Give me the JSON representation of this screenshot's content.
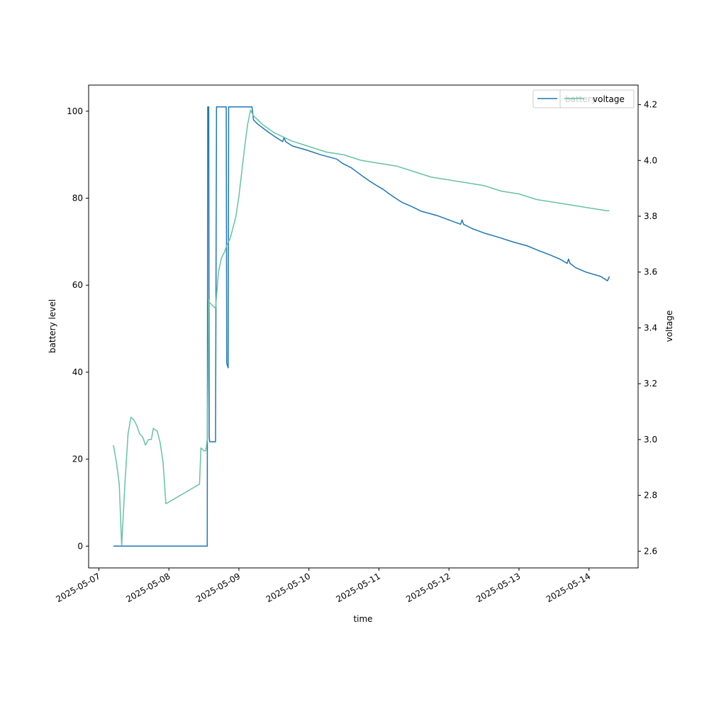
{
  "chart_data": {
    "type": "line",
    "xlabel": "time",
    "ylabel_left": "battery level",
    "ylabel_right": "voltage",
    "x_ticks": [
      "2025-05-07",
      "2025-05-08",
      "2025-05-09",
      "2025-05-10",
      "2025-05-11",
      "2025-05-12",
      "2025-05-13",
      "2025-05-14"
    ],
    "xlim": [
      "2025-05-06 20:30",
      "2025-05-14 16:50"
    ],
    "ylim_left": [
      -5,
      106
    ],
    "y_ticks_left": [
      0,
      20,
      40,
      60,
      80,
      100
    ],
    "ylim_right": [
      2.54,
      4.27
    ],
    "y_ticks_right": [
      2.6,
      2.8,
      3.0,
      3.2,
      3.4,
      3.6,
      3.8,
      4.0,
      4.2
    ],
    "legend_placement": "upper-right",
    "series": [
      {
        "name": "battery",
        "axis": "left",
        "color": "#1f77b4",
        "points": [
          [
            "2025-05-07 05:00",
            0
          ],
          [
            "2025-05-08 13:10",
            0
          ],
          [
            "2025-05-08 13:20",
            101
          ],
          [
            "2025-05-08 13:40",
            101
          ],
          [
            "2025-05-08 13:50",
            25
          ],
          [
            "2025-05-08 14:00",
            24
          ],
          [
            "2025-05-08 16:00",
            24
          ],
          [
            "2025-05-08 16:20",
            101
          ],
          [
            "2025-05-08 19:40",
            101
          ],
          [
            "2025-05-08 19:50",
            42
          ],
          [
            "2025-05-08 20:20",
            41
          ],
          [
            "2025-05-08 20:30",
            101
          ],
          [
            "2025-05-09 04:30",
            101
          ],
          [
            "2025-05-09 05:00",
            98
          ],
          [
            "2025-05-09 06:30",
            97
          ],
          [
            "2025-05-09 08:30",
            96
          ],
          [
            "2025-05-09 10:30",
            95
          ],
          [
            "2025-05-09 12:40",
            94
          ],
          [
            "2025-05-09 15:00",
            93
          ],
          [
            "2025-05-09 15:30",
            94
          ],
          [
            "2025-05-09 16:00",
            93
          ],
          [
            "2025-05-09 18:20",
            92
          ],
          [
            "2025-05-09 23:30",
            91
          ],
          [
            "2025-05-10 04:00",
            90
          ],
          [
            "2025-05-10 09:30",
            89
          ],
          [
            "2025-05-10 11:30",
            88
          ],
          [
            "2025-05-10 14:30",
            87
          ],
          [
            "2025-05-10 16:30",
            86
          ],
          [
            "2025-05-10 18:30",
            85
          ],
          [
            "2025-05-10 20:40",
            84
          ],
          [
            "2025-05-10 23:00",
            83
          ],
          [
            "2025-05-11 01:30",
            82
          ],
          [
            "2025-05-11 03:30",
            81
          ],
          [
            "2025-05-11 05:40",
            80
          ],
          [
            "2025-05-11 08:00",
            79
          ],
          [
            "2025-05-11 11:30",
            78
          ],
          [
            "2025-05-11 14:30",
            77
          ],
          [
            "2025-05-11 20:00",
            76
          ],
          [
            "2025-05-12 00:00",
            75
          ],
          [
            "2025-05-12 04:00",
            74
          ],
          [
            "2025-05-12 04:30",
            75
          ],
          [
            "2025-05-12 05:00",
            74
          ],
          [
            "2025-05-12 08:00",
            73
          ],
          [
            "2025-05-12 12:00",
            72
          ],
          [
            "2025-05-12 17:00",
            71
          ],
          [
            "2025-05-12 21:40",
            70
          ],
          [
            "2025-05-13 03:00",
            69
          ],
          [
            "2025-05-13 06:30",
            68
          ],
          [
            "2025-05-13 10:30",
            67
          ],
          [
            "2025-05-13 14:00",
            66
          ],
          [
            "2025-05-13 16:30",
            65
          ],
          [
            "2025-05-13 17:00",
            66
          ],
          [
            "2025-05-13 17:30",
            65
          ],
          [
            "2025-05-13 19:30",
            64
          ],
          [
            "2025-05-13 23:00",
            63
          ],
          [
            "2025-05-14 04:00",
            62
          ],
          [
            "2025-05-14 06:20",
            61
          ],
          [
            "2025-05-14 07:00",
            62
          ]
        ]
      },
      {
        "name": "voltage",
        "axis": "right",
        "color": "#66c2a5",
        "points": [
          [
            "2025-05-07 05:00",
            2.98
          ],
          [
            "2025-05-07 06:00",
            2.92
          ],
          [
            "2025-05-07 07:00",
            2.84
          ],
          [
            "2025-05-07 07:50",
            2.62
          ],
          [
            "2025-05-07 09:00",
            2.85
          ],
          [
            "2025-05-07 10:00",
            3.02
          ],
          [
            "2025-05-07 11:00",
            3.08
          ],
          [
            "2025-05-07 12:00",
            3.07
          ],
          [
            "2025-05-07 13:00",
            3.05
          ],
          [
            "2025-05-07 14:00",
            3.02
          ],
          [
            "2025-05-07 15:00",
            3.01
          ],
          [
            "2025-05-07 16:00",
            2.98
          ],
          [
            "2025-05-07 17:00",
            3.0
          ],
          [
            "2025-05-07 18:00",
            3.0
          ],
          [
            "2025-05-07 18:40",
            3.04
          ],
          [
            "2025-05-07 20:00",
            3.03
          ],
          [
            "2025-05-07 21:00",
            2.99
          ],
          [
            "2025-05-07 22:00",
            2.92
          ],
          [
            "2025-05-07 23:00",
            2.77
          ],
          [
            "2025-05-08 10:30",
            2.84
          ],
          [
            "2025-05-08 11:00",
            2.97
          ],
          [
            "2025-05-08 12:00",
            2.96
          ],
          [
            "2025-05-08 12:40",
            2.96
          ],
          [
            "2025-05-08 13:10",
            3.0
          ],
          [
            "2025-05-08 13:40",
            3.5
          ],
          [
            "2025-05-08 14:00",
            3.49
          ],
          [
            "2025-05-08 15:00",
            3.48
          ],
          [
            "2025-05-08 16:00",
            3.47
          ],
          [
            "2025-05-08 17:00",
            3.6
          ],
          [
            "2025-05-08 18:00",
            3.65
          ],
          [
            "2025-05-08 19:00",
            3.67
          ],
          [
            "2025-05-08 20:00",
            3.7
          ],
          [
            "2025-05-08 21:00",
            3.72
          ],
          [
            "2025-05-08 22:00",
            3.76
          ],
          [
            "2025-05-08 23:00",
            3.8
          ],
          [
            "2025-05-09 00:00",
            3.87
          ],
          [
            "2025-05-09 01:00",
            3.96
          ],
          [
            "2025-05-09 02:00",
            4.05
          ],
          [
            "2025-05-09 03:00",
            4.13
          ],
          [
            "2025-05-09 04:00",
            4.18
          ],
          [
            "2025-05-09 05:00",
            4.16
          ],
          [
            "2025-05-09 08:00",
            4.13
          ],
          [
            "2025-05-09 12:00",
            4.1
          ],
          [
            "2025-05-09 18:00",
            4.07
          ],
          [
            "2025-05-10 00:00",
            4.05
          ],
          [
            "2025-05-10 06:00",
            4.03
          ],
          [
            "2025-05-10 12:00",
            4.02
          ],
          [
            "2025-05-10 18:00",
            4.0
          ],
          [
            "2025-05-11 00:00",
            3.99
          ],
          [
            "2025-05-11 06:00",
            3.98
          ],
          [
            "2025-05-11 12:00",
            3.96
          ],
          [
            "2025-05-11 18:00",
            3.94
          ],
          [
            "2025-05-12 00:00",
            3.93
          ],
          [
            "2025-05-12 06:00",
            3.92
          ],
          [
            "2025-05-12 12:00",
            3.91
          ],
          [
            "2025-05-12 18:00",
            3.89
          ],
          [
            "2025-05-13 00:00",
            3.88
          ],
          [
            "2025-05-13 06:00",
            3.86
          ],
          [
            "2025-05-13 12:00",
            3.85
          ],
          [
            "2025-05-13 18:00",
            3.84
          ],
          [
            "2025-05-14 00:00",
            3.83
          ],
          [
            "2025-05-14 06:00",
            3.82
          ],
          [
            "2025-05-14 07:00",
            3.82
          ]
        ]
      }
    ],
    "legend_entries": [
      "battery",
      "voltage"
    ]
  }
}
